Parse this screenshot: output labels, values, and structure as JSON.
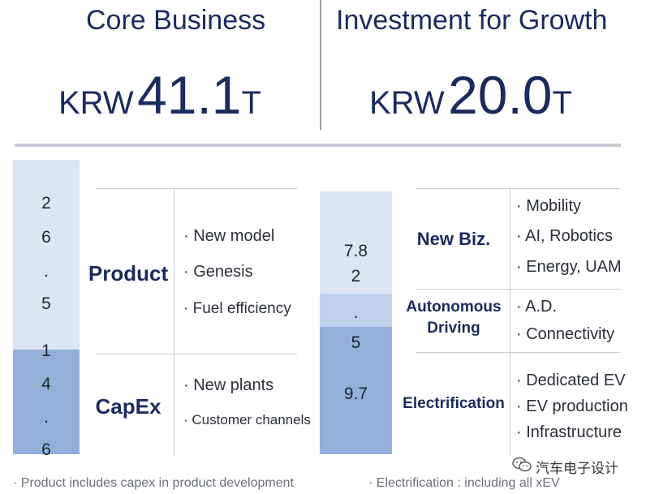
{
  "header": {
    "left_title": "Core Business",
    "left_currency": "KRW",
    "left_value": "41.1",
    "left_unit": "T",
    "right_title": "Investment for Growth",
    "right_currency": "KRW",
    "right_value": "20.0",
    "right_unit": "T"
  },
  "chart_data": [
    {
      "type": "bar",
      "stacked": true,
      "title": "Core Business",
      "total": 41.1,
      "categories": [
        "Core Business"
      ],
      "series": [
        {
          "name": "CapEx",
          "values": [
            14.6
          ],
          "label_chars": [
            "1",
            "4",
            ".",
            "6"
          ],
          "color": "#94b0da"
        },
        {
          "name": "Product",
          "values": [
            26.5
          ],
          "label_chars": [
            "2",
            "6",
            ".",
            "5"
          ],
          "color": "#dce5f3"
        }
      ]
    },
    {
      "type": "bar",
      "stacked": true,
      "title": "Investment for Growth",
      "total": 20.0,
      "categories": [
        "Investment for Growth"
      ],
      "series": [
        {
          "name": "Electrification",
          "values": [
            9.7
          ],
          "label_lines": [
            "9.7"
          ],
          "color": "#94b0da"
        },
        {
          "name": "Autonomous Driving",
          "values": [
            2.5
          ],
          "label_lines": [
            "5"
          ],
          "color": "#bfd1ec"
        },
        {
          "name": "New Biz.",
          "values": [
            7.8
          ],
          "label_lines": [
            "7.8",
            "2"
          ],
          "color": "#dce5f3"
        }
      ],
      "extra_label": "."
    }
  ],
  "left_table": [
    {
      "category": "Product",
      "items": [
        "New model",
        "Genesis",
        "Fuel efficiency"
      ]
    },
    {
      "category": "CapEx",
      "items": [
        "New plants",
        "Customer channels"
      ]
    }
  ],
  "right_table": [
    {
      "category": "New Biz.",
      "items": [
        "Mobility",
        "AI, Robotics",
        "Energy, UAM"
      ]
    },
    {
      "category_lines": [
        "Autonomous",
        "Driving"
      ],
      "items": [
        "A.D.",
        "Connectivity"
      ]
    },
    {
      "category": "Electrification",
      "items": [
        "Dedicated EV",
        "EV production",
        "Infrastructure"
      ]
    }
  ],
  "footnotes": {
    "left": "· Product includes capex in product development",
    "right": "· Electrification : including all xEV"
  },
  "watermark": {
    "text": "汽车电子设计",
    "icon": "wechat-icon"
  },
  "bullet": "·",
  "colors": {
    "navy": "#1c2b5e",
    "bar_dark": "#94b0da",
    "bar_mid": "#bfd1ec",
    "bar_light": "#dce5f3"
  }
}
